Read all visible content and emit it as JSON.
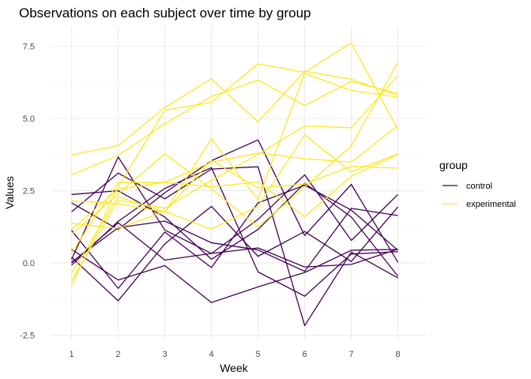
{
  "chart_data": {
    "type": "line",
    "title": "Observations on each subject over time by group",
    "xlabel": "Week",
    "ylabel": "Values",
    "x": [
      1,
      2,
      3,
      4,
      5,
      6,
      7,
      8
    ],
    "x_ticks": [
      "1",
      "2",
      "3",
      "4",
      "5",
      "6",
      "7",
      "8"
    ],
    "y_ticks": [
      "-2.5",
      "0.0",
      "2.5",
      "5.0",
      "7.5"
    ],
    "xlim": [
      0.55,
      8.6
    ],
    "ylim": [
      -2.65,
      8.2
    ],
    "grid": true,
    "legend": {
      "title": "group",
      "position": "right",
      "entries": [
        {
          "label": "control",
          "color": "#440154"
        },
        {
          "label": "experimental",
          "color": "#FDE725"
        }
      ]
    },
    "groups": {
      "control": {
        "color": "#440154"
      },
      "experimental": {
        "color": "#FDE725"
      }
    },
    "series": [
      {
        "group": "control",
        "values": [
          0.2,
          -1.31,
          0.66,
          1.96,
          0.23,
          1.09,
          0.05,
          1.94
        ]
      },
      {
        "group": "control",
        "values": [
          1.13,
          -0.88,
          1.07,
          -0.16,
          2.08,
          2.69,
          1.83,
          0.44
        ]
      },
      {
        "group": "control",
        "values": [
          0.0,
          1.39,
          0.1,
          0.33,
          0.52,
          -0.14,
          -0.05,
          0.48
        ]
      },
      {
        "group": "control",
        "values": [
          2.08,
          1.16,
          2.43,
          3.54,
          4.26,
          0.95,
          2.72,
          0.02
        ]
      },
      {
        "group": "control",
        "values": [
          0.47,
          -0.59,
          -0.09,
          -1.37,
          -0.83,
          -0.33,
          0.44,
          0.47
        ]
      },
      {
        "group": "control",
        "values": [
          2.37,
          2.5,
          1.59,
          0.13,
          1.16,
          2.76,
          1.59,
          -0.46
        ]
      },
      {
        "group": "control",
        "values": [
          0.03,
          1.22,
          1.45,
          0.7,
          0.45,
          -0.29,
          1.89,
          1.64
        ]
      },
      {
        "group": "control",
        "values": [
          -0.08,
          1.44,
          2.58,
          3.3,
          -0.31,
          -1.15,
          0.31,
          0.39
        ]
      },
      {
        "group": "control",
        "values": [
          0.12,
          3.67,
          1.14,
          0.33,
          1.51,
          3.05,
          0.78,
          2.37
        ]
      },
      {
        "group": "control",
        "values": [
          1.77,
          3.11,
          2.22,
          3.25,
          3.33,
          -2.17,
          0.38,
          -0.52
        ]
      },
      {
        "group": "experimental",
        "values": [
          3.74,
          4.06,
          5.38,
          6.37,
          4.88,
          6.64,
          6.36,
          5.8
        ]
      },
      {
        "group": "experimental",
        "values": [
          3.05,
          3.72,
          4.82,
          5.76,
          6.33,
          5.45,
          6.28,
          5.87
        ]
      },
      {
        "group": "experimental",
        "values": [
          -0.63,
          2.17,
          1.9,
          2.85,
          3.76,
          4.74,
          4.68,
          6.48
        ]
      },
      {
        "group": "experimental",
        "values": [
          -0.35,
          2.29,
          1.77,
          3.55,
          2.59,
          2.73,
          3.35,
          3.28
        ]
      },
      {
        "group": "experimental",
        "values": [
          0.99,
          2.39,
          3.78,
          2.56,
          1.25,
          2.62,
          4.05,
          6.95
        ]
      },
      {
        "group": "experimental",
        "values": [
          2.15,
          2.05,
          1.76,
          4.3,
          2.19,
          6.56,
          5.97,
          5.74
        ]
      },
      {
        "group": "experimental",
        "values": [
          1.16,
          2.55,
          2.79,
          2.64,
          2.8,
          1.6,
          3.0,
          3.76
        ]
      },
      {
        "group": "experimental",
        "values": [
          -0.79,
          2.63,
          5.29,
          5.56,
          6.89,
          6.6,
          7.62,
          4.61
        ]
      },
      {
        "group": "experimental",
        "values": [
          1.37,
          1.2,
          1.78,
          1.17,
          1.96,
          4.43,
          3.15,
          3.78
        ]
      },
      {
        "group": "experimental",
        "values": [
          0.36,
          2.78,
          2.79,
          3.49,
          3.8,
          3.61,
          3.49,
          4.76
        ]
      }
    ]
  }
}
